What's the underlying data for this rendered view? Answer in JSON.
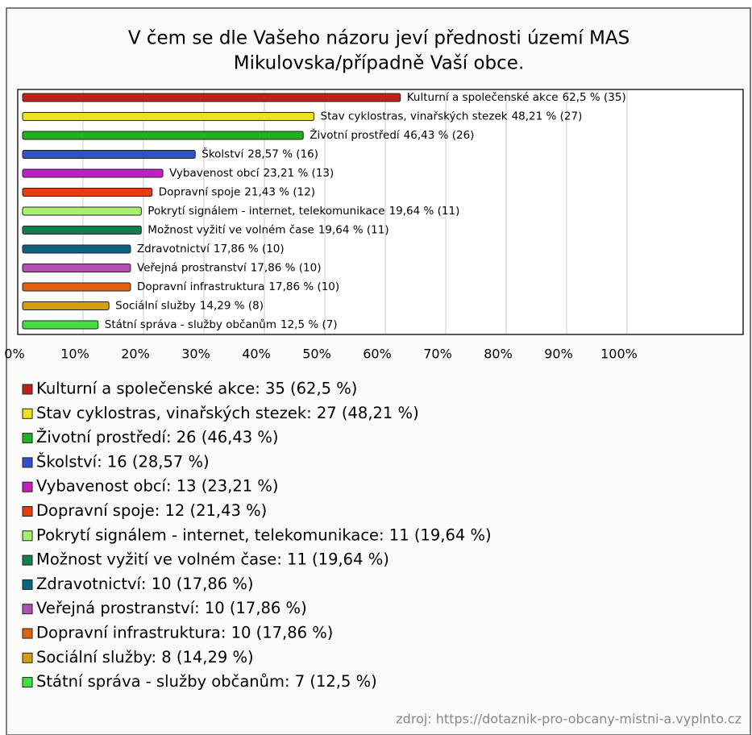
{
  "chart_data": {
    "type": "bar",
    "orientation": "horizontal",
    "title": [
      "V čem se dle Vašeho názoru jeví přednosti území MAS",
      "Mikulovska/případně Vaší obce."
    ],
    "categories": [
      "Kulturní a společenské akce",
      "Stav cyklostras, vinařských stezek",
      "Životní prostředí",
      "Školství",
      "Vybavenost obcí",
      "Dopravní spoje",
      "Pokrytí signálem - internet, telekomunikace",
      "Možnost vyžití ve volném čase",
      "Zdravotnictví",
      "Veřejná prostranství",
      "Dopravní infrastruktura",
      "Sociální služby",
      "Státní správa - služby občanům"
    ],
    "values": [
      62.5,
      48.21,
      46.43,
      28.57,
      23.21,
      21.43,
      19.64,
      19.64,
      17.86,
      17.86,
      17.86,
      14.29,
      12.5
    ],
    "value_labels": [
      "62,5 % (35)",
      "48,21 % (27)",
      "46,43 % (26)",
      "28,57 % (16)",
      "23,21 % (13)",
      "21,43 % (12)",
      "19,64 % (11)",
      "19,64 % (11)",
      "17,86 % (10)",
      "17,86 % (10)",
      "17,86 % (10)",
      "14,29 % (8)",
      "12,5 % (7)"
    ],
    "colors": [
      "#c0201a",
      "#f0e020",
      "#20b020",
      "#3050d0",
      "#c020c0",
      "#e04010",
      "#a8f070",
      "#108050",
      "#106080",
      "#b050b0",
      "#e06010",
      "#d0a010",
      "#40e040"
    ],
    "legend_labels": [
      "Kulturní a společenské akce: 35 (62,5 %)",
      "Stav cyklostras, vinařských stezek: 27 (48,21 %)",
      "Životní prostředí: 26 (46,43 %)",
      "Školství: 16 (28,57 %)",
      "Vybavenost obcí: 13 (23,21 %)",
      "Dopravní spoje: 12 (21,43 %)",
      "Pokrytí signálem - internet, telekomunikace: 11 (19,64 %)",
      "Možnost vyžití ve volném čase: 11 (19,64 %)",
      "Zdravotnictví: 10 (17,86 %)",
      "Veřejná prostranství: 10 (17,86 %)",
      "Dopravní infrastruktura: 10 (17,86 %)",
      "Sociální služby: 8 (14,29 %)",
      "Státní správa - služby občanům: 7 (12,5 %)"
    ],
    "xlim": [
      0,
      100
    ],
    "xticks": [
      {
        "value": 0,
        "label": "0%"
      },
      {
        "value": 10,
        "label": "10%"
      },
      {
        "value": 20,
        "label": "20%"
      },
      {
        "value": 30,
        "label": "30%"
      },
      {
        "value": 40,
        "label": "40%"
      },
      {
        "value": 50,
        "label": "50%"
      },
      {
        "value": 60,
        "label": "60%"
      },
      {
        "value": 70,
        "label": "70%"
      },
      {
        "value": 80,
        "label": "80%"
      },
      {
        "value": 90,
        "label": "90%"
      },
      {
        "value": 100,
        "label": "100%"
      }
    ],
    "grid": true,
    "source": "zdroj: https://dotaznik-pro-obcany-mistni-a.vyplnto.cz"
  }
}
